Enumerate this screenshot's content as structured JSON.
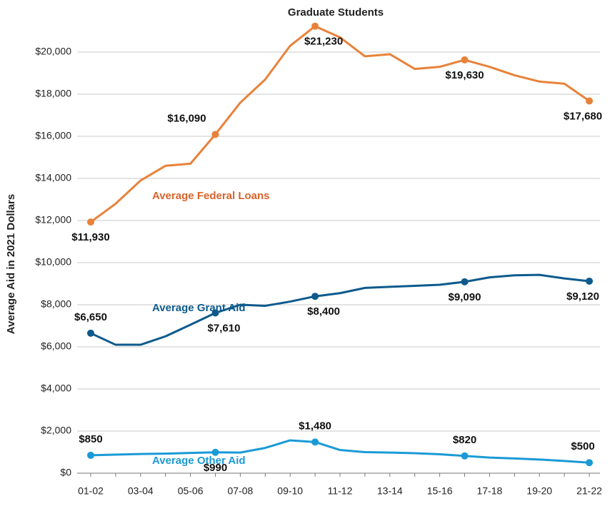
{
  "chart_data": {
    "type": "line",
    "title": "Graduate Students",
    "y_label": "Average Aid in 2021 Dollars",
    "categories": [
      "01-02",
      null,
      "03-04",
      null,
      "05-06",
      null,
      "07-08",
      null,
      "09-10",
      null,
      "11-12",
      null,
      "13-14",
      null,
      "15-16",
      null,
      "17-18",
      null,
      "19-20",
      null,
      "21-22"
    ],
    "ylim": [
      0,
      22000
    ],
    "yticks": [
      {
        "value": 0,
        "label": "$0"
      },
      {
        "value": 2000,
        "label": "$2,000"
      },
      {
        "value": 4000,
        "label": "$4,000"
      },
      {
        "value": 6000,
        "label": "$6,000"
      },
      {
        "value": 8000,
        "label": "$8,000"
      },
      {
        "value": 10000,
        "label": "$10,000"
      },
      {
        "value": 12000,
        "label": "$12,000"
      },
      {
        "value": 14000,
        "label": "$14,000"
      },
      {
        "value": 16000,
        "label": "$16,000"
      },
      {
        "value": 18000,
        "label": "$18,000"
      },
      {
        "value": 20000,
        "label": "$20,000"
      }
    ],
    "grid": true,
    "series": [
      {
        "name": "Average Federal Loans",
        "color": "#e8823a",
        "label_color": "#d9632b",
        "values": [
          11930,
          12800,
          13900,
          14600,
          14700,
          16090,
          17600,
          18700,
          20300,
          21230,
          20700,
          19800,
          19900,
          19200,
          19300,
          19630,
          19300,
          18900,
          18600,
          18500,
          17680
        ],
        "value_labels": [
          "$11,930",
          null,
          null,
          null,
          null,
          "$16,090",
          null,
          null,
          null,
          "$21,230",
          null,
          null,
          null,
          null,
          null,
          "$19,630",
          null,
          null,
          null,
          null,
          "$17,680"
        ]
      },
      {
        "name": "Average Grant Aid",
        "color": "#0d5a8c",
        "label_color": "#0d5a8c",
        "values": [
          6650,
          6100,
          6100,
          6500,
          7050,
          7610,
          8000,
          7950,
          8150,
          8400,
          8550,
          8800,
          8850,
          8900,
          8950,
          9090,
          9300,
          9400,
          9420,
          9250,
          9120
        ],
        "value_labels": [
          "$6,650",
          null,
          null,
          null,
          null,
          "$7,610",
          null,
          null,
          null,
          "$8,400",
          null,
          null,
          null,
          null,
          null,
          "$9,090",
          null,
          null,
          null,
          null,
          "$9,120"
        ]
      },
      {
        "name": "Average Other Aid",
        "color": "#1a9ad6",
        "label_color": "#1a9ad6",
        "values": [
          850,
          880,
          910,
          930,
          960,
          990,
          980,
          1200,
          1560,
          1480,
          1100,
          1000,
          980,
          950,
          900,
          820,
          740,
          700,
          650,
          580,
          500
        ],
        "value_labels": [
          "$850",
          null,
          null,
          null,
          null,
          "$990",
          null,
          null,
          null,
          "$1,480",
          null,
          null,
          null,
          null,
          null,
          "$820",
          null,
          null,
          null,
          null,
          "$500"
        ]
      }
    ]
  }
}
